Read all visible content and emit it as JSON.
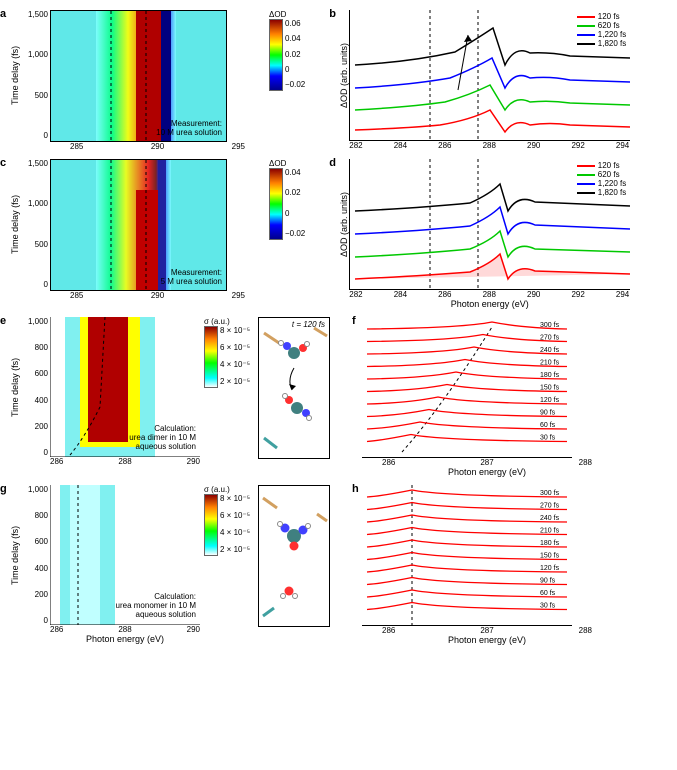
{
  "panel_a": {
    "label": "a",
    "ylabel": "Time delay (fs)",
    "yticks": [
      "1,500",
      "1,000",
      "500",
      "0"
    ],
    "xticks": [
      "285",
      "290",
      "295"
    ],
    "annotation": "Measurement:\n10 M urea solution",
    "colorbar_label": "ΔOD",
    "colorbar_ticks": [
      "0.06",
      "0.04",
      "0.02",
      "0",
      "−0.02"
    ],
    "colormap": [
      "#00008b",
      "#0000ff",
      "#00ffff",
      "#00ff7f",
      "#ffff00",
      "#ff8c00",
      "#ff0000",
      "#8b0000"
    ],
    "vlines_x": [
      286,
      288.3
    ]
  },
  "panel_b": {
    "label": "b",
    "ylabel": "ΔOD (arb. units)",
    "xlabel": "Photon energy (eV)",
    "xticks": [
      "282",
      "284",
      "286",
      "288",
      "290",
      "292",
      "294"
    ],
    "legend": [
      {
        "label": "120 fs",
        "color": "#ff0000"
      },
      {
        "label": "620 fs",
        "color": "#00c800"
      },
      {
        "label": "1,220 fs",
        "color": "#0000ff"
      },
      {
        "label": "1,820 fs",
        "color": "#000000"
      }
    ],
    "vlines_x": [
      286,
      288.3
    ]
  },
  "panel_c": {
    "label": "c",
    "ylabel": "Time delay (fs)",
    "yticks": [
      "1,500",
      "1,000",
      "500",
      "0"
    ],
    "xticks": [
      "285",
      "290",
      "295"
    ],
    "annotation": "Measurement:\n5 M urea solution",
    "colorbar_label": "ΔOD",
    "colorbar_ticks": [
      "0.04",
      "0.02",
      "0",
      "−0.02"
    ],
    "vlines_x": [
      286,
      288.3
    ]
  },
  "panel_d": {
    "label": "d",
    "ylabel": "ΔOD (arb. units)",
    "xlabel": "Photon energy (eV)",
    "xticks": [
      "282",
      "284",
      "286",
      "288",
      "290",
      "292",
      "294"
    ],
    "legend": [
      {
        "label": "120 fs",
        "color": "#ff0000"
      },
      {
        "label": "620 fs",
        "color": "#00c800"
      },
      {
        "label": "1,220 fs",
        "color": "#0000ff"
      },
      {
        "label": "1,820 fs",
        "color": "#000000"
      }
    ],
    "vlines_x": [
      286,
      288.3
    ]
  },
  "panel_e": {
    "label": "e",
    "ylabel": "Time delay (fs)",
    "yticks": [
      "1,000",
      "800",
      "600",
      "400",
      "200",
      "0"
    ],
    "xticks": [
      "286",
      "288",
      "290"
    ],
    "annotation": "Calculation:\nurea dimer in 10 M\naqueous solution",
    "colorbar_label": "σ (a.u.)",
    "colorbar_ticks": [
      "8 × 10⁻⁵",
      "6 × 10⁻⁵",
      "4 × 10⁻⁵",
      "2 × 10⁻⁵"
    ],
    "mol_time": "t = 120 fs"
  },
  "panel_f": {
    "label": "f",
    "xticks": [
      "286",
      "287",
      "288"
    ],
    "xlabel": "Photon energy (eV)",
    "times": [
      "300 fs",
      "270 fs",
      "240 fs",
      "210 fs",
      "180 fs",
      "150 fs",
      "120 fs",
      "90 fs",
      "60 fs",
      "30 fs"
    ],
    "line_color": "#ff0000"
  },
  "panel_g": {
    "label": "g",
    "ylabel": "Time delay (fs)",
    "xlabel": "Photon energy (eV)",
    "yticks": [
      "1,000",
      "800",
      "600",
      "400",
      "200",
      "0"
    ],
    "xticks": [
      "286",
      "288",
      "290"
    ],
    "annotation": "Calculation:\nurea monomer in 10 M\naqueous solution",
    "colorbar_label": "σ (a.u.)",
    "colorbar_ticks": [
      "8 × 10⁻⁵",
      "6 × 10⁻⁵",
      "4 × 10⁻⁵",
      "2 × 10⁻⁵"
    ]
  },
  "panel_h": {
    "label": "h",
    "xticks": [
      "286",
      "287",
      "288"
    ],
    "xlabel": "Photon energy (eV)",
    "times": [
      "300 fs",
      "270 fs",
      "240 fs",
      "210 fs",
      "180 fs",
      "150 fs",
      "120 fs",
      "90 fs",
      "60 fs",
      "30 fs"
    ],
    "line_color": "#ff0000"
  },
  "shared_xlabel": "Photon energy (eV)"
}
